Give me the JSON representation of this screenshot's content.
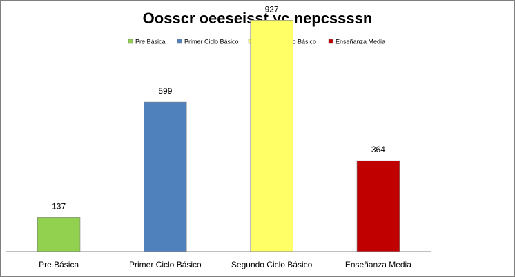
{
  "chart_data": {
    "type": "bar",
    "title": "Oosscr oeeseisst yc nepcssssn",
    "xlabel": "",
    "ylabel": "",
    "categories": [
      "Pre Básica",
      "Primer Ciclo Básico",
      "Segundo Ciclo Básico",
      "Enseñanza Media"
    ],
    "values": [
      137,
      599,
      927,
      364
    ],
    "colors": [
      "#92d050",
      "#4f81bd",
      "#ffff66",
      "#c00000"
    ],
    "value_labels": [
      "137",
      "599",
      "927",
      "364"
    ],
    "ylim": [
      0,
      950
    ],
    "grid": false,
    "legend_position": "top",
    "show_y_axis": false
  }
}
